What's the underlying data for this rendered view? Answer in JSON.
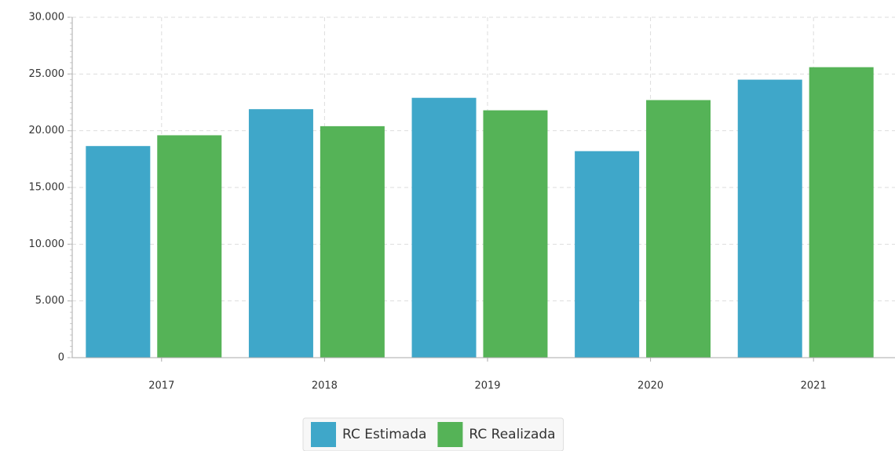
{
  "chart_data": {
    "type": "bar",
    "categories": [
      "2017",
      "2018",
      "2019",
      "2020",
      "2021"
    ],
    "series": [
      {
        "name": "RC Estimada",
        "color": "#3fa7c9",
        "values": [
          18650,
          21900,
          22900,
          18200,
          24500
        ]
      },
      {
        "name": "RC Realizada",
        "color": "#55b357",
        "values": [
          19600,
          20400,
          21800,
          22700,
          25600
        ]
      }
    ],
    "ylim": [
      0,
      30000
    ],
    "yticks": [
      0,
      {
        "value": 5000,
        "label": "5.000"
      },
      {
        "value": 10000,
        "label": "10.000"
      },
      {
        "value": 15000,
        "label": "15.000"
      },
      {
        "value": 20000,
        "label": "20.000"
      },
      {
        "value": 25000,
        "label": "25.000"
      },
      {
        "value": 30000,
        "label": "30.000"
      }
    ],
    "grid": true,
    "legend": "bottom"
  }
}
